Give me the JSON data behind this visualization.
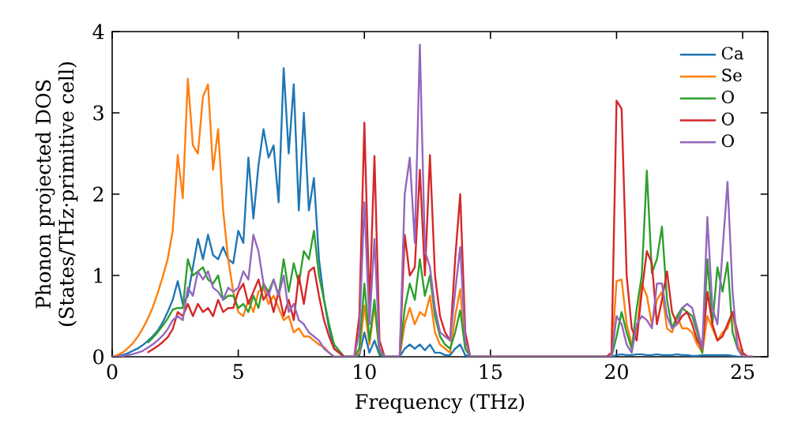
{
  "chart_data": {
    "type": "line",
    "xlabel": "Frequency (THz)",
    "ylabel": "Phonon projected DOS\n(States/THz·primitive cell)",
    "x": [
      0,
      0.2,
      0.4,
      0.6,
      0.8,
      1.0,
      1.2,
      1.4,
      1.6,
      1.8,
      2.0,
      2.2,
      2.4,
      2.6,
      2.8,
      3.0,
      3.2,
      3.4,
      3.6,
      3.8,
      4.0,
      4.2,
      4.4,
      4.6,
      4.8,
      5.0,
      5.2,
      5.4,
      5.6,
      5.8,
      6.0,
      6.2,
      6.4,
      6.6,
      6.8,
      7.0,
      7.2,
      7.4,
      7.6,
      7.8,
      8.0,
      8.2,
      8.4,
      8.6,
      8.8,
      9.2,
      9.6,
      9.8,
      10.0,
      10.2,
      10.4,
      10.6,
      10.8,
      11.4,
      11.6,
      11.8,
      12.0,
      12.2,
      12.4,
      12.6,
      12.8,
      13.0,
      13.2,
      13.4,
      13.6,
      13.8,
      14.0,
      14.2,
      19.6,
      19.8,
      20.0,
      20.2,
      20.4,
      20.6,
      20.8,
      21.0,
      21.2,
      21.4,
      21.6,
      21.8,
      22.0,
      22.2,
      22.4,
      22.6,
      22.8,
      23.0,
      23.2,
      23.4,
      23.6,
      23.8,
      24.0,
      24.2,
      24.4,
      24.6,
      24.8,
      25.0,
      25.2,
      25.4
    ],
    "series": [
      {
        "name": "Ca",
        "color": "#1f77b4",
        "values": [
          0,
          0.01,
          0.02,
          0.04,
          0.07,
          0.1,
          0.14,
          0.19,
          0.25,
          0.32,
          0.42,
          0.55,
          0.7,
          0.93,
          0.65,
          0.75,
          1.1,
          1.45,
          1.2,
          1.5,
          1.25,
          1.2,
          1.35,
          1.2,
          1.15,
          1.55,
          1.4,
          2.45,
          1.7,
          2.35,
          2.8,
          2.45,
          2.6,
          1.9,
          3.55,
          2.5,
          3.35,
          1.8,
          3.0,
          1.8,
          2.2,
          1.2,
          0.7,
          0.35,
          0.1,
          0,
          0,
          0.02,
          0.3,
          0.05,
          0.2,
          0.02,
          0,
          0,
          0.1,
          0.15,
          0.1,
          0.15,
          0.08,
          0.15,
          0.05,
          0.05,
          0.02,
          0.02,
          0.1,
          0.15,
          0.02,
          0,
          0,
          0,
          0.02,
          0.03,
          0.02,
          0.02,
          0.03,
          0.03,
          0.02,
          0.02,
          0.03,
          0.02,
          0.02,
          0.02,
          0.03,
          0.02,
          0.02,
          0.01,
          0.01,
          0.02,
          0.02,
          0.02,
          0.02,
          0.02,
          0.02,
          0.01,
          0,
          0,
          0,
          0
        ]
      },
      {
        "name": "Se",
        "color": "#ff7f0e",
        "values": [
          0,
          0.02,
          0.05,
          0.1,
          0.16,
          0.24,
          0.34,
          0.46,
          0.6,
          0.78,
          0.98,
          1.2,
          1.55,
          2.48,
          1.95,
          3.42,
          2.6,
          2.5,
          3.2,
          3.35,
          2.3,
          2.8,
          1.8,
          1.2,
          0.8,
          0.55,
          0.5,
          0.7,
          0.55,
          0.8,
          0.85,
          0.65,
          0.75,
          0.6,
          0.45,
          0.5,
          0.3,
          0.35,
          0.25,
          0.25,
          0.2,
          0.15,
          0.12,
          0.05,
          0,
          0,
          0,
          0.05,
          0.63,
          0.15,
          0.63,
          0.05,
          0,
          0,
          0.4,
          0.6,
          0.4,
          0.55,
          0.5,
          0.75,
          0.3,
          0.15,
          0.1,
          0.05,
          0.5,
          0.83,
          0.1,
          0,
          0,
          0,
          0.93,
          0.95,
          0.4,
          0.15,
          0.3,
          0.9,
          0.75,
          0.4,
          0.7,
          0.8,
          0.35,
          0.3,
          0.5,
          0.35,
          0.35,
          0.3,
          0.15,
          0.05,
          0.5,
          0.35,
          0.2,
          0.3,
          0.35,
          0.55,
          0.15,
          0,
          0,
          0
        ]
      },
      {
        "name": "O",
        "color": "#2ca02c",
        "values": [
          null,
          null,
          null,
          null,
          null,
          null,
          null,
          0.17,
          0.23,
          0.3,
          0.38,
          0.47,
          0.58,
          0.6,
          0.6,
          1.2,
          1.0,
          1.05,
          1.1,
          0.95,
          0.9,
          1.0,
          0.7,
          0.75,
          0.75,
          0.6,
          0.65,
          0.55,
          0.75,
          0.6,
          0.9,
          0.8,
          0.95,
          0.75,
          1.2,
          0.8,
          1.15,
          0.9,
          1.3,
          1.2,
          1.55,
          1.0,
          0.7,
          0.4,
          0.15,
          0,
          0,
          0.1,
          0.9,
          0.2,
          0.7,
          0.05,
          0,
          0,
          0.6,
          0.9,
          0.7,
          1.2,
          0.75,
          1.0,
          0.5,
          0.25,
          0.15,
          0.1,
          0.3,
          0.57,
          0.1,
          0,
          0,
          0,
          0.25,
          0.55,
          0.3,
          0.1,
          0.6,
          1.0,
          2.29,
          1.03,
          1.2,
          1.6,
          0.7,
          0.35,
          0.5,
          0.6,
          0.55,
          0.5,
          0.3,
          0.05,
          1.2,
          0.4,
          1.1,
          0.8,
          1.16,
          0.3,
          0.1,
          0,
          null,
          null
        ]
      },
      {
        "name": "O",
        "color": "#d62728",
        "values": [
          null,
          null,
          null,
          null,
          null,
          null,
          null,
          0.05,
          0.09,
          0.13,
          0.18,
          0.24,
          0.34,
          0.55,
          0.5,
          0.65,
          0.5,
          0.65,
          0.55,
          0.6,
          0.5,
          0.7,
          0.55,
          0.6,
          0.6,
          0.8,
          0.9,
          0.65,
          0.8,
          0.95,
          0.7,
          0.8,
          0.55,
          0.8,
          0.5,
          0.7,
          0.45,
          1.0,
          0.65,
          1.05,
          1.1,
          0.75,
          0.45,
          0.25,
          0.1,
          0,
          0,
          0.5,
          2.88,
          0.6,
          2.47,
          0.2,
          0,
          0,
          1.5,
          1.0,
          1.1,
          2.3,
          1.0,
          2.48,
          1.0,
          0.5,
          0.3,
          0.2,
          1.2,
          2.0,
          0.3,
          0,
          0,
          0.05,
          3.15,
          3.05,
          1.0,
          0.35,
          0.2,
          0.8,
          1.3,
          1.15,
          0.4,
          0.7,
          1.05,
          0.55,
          0.4,
          0.5,
          0.55,
          0.4,
          0.2,
          0.1,
          0.8,
          0.4,
          0.2,
          0.25,
          0.4,
          0.55,
          0.3,
          0.05,
          0,
          0
        ]
      },
      {
        "name": "O",
        "color": "#9467bd",
        "values": [
          0,
          0,
          0.01,
          0.02,
          0.03,
          0.05,
          0.07,
          0.11,
          0.15,
          0.2,
          0.26,
          0.34,
          0.45,
          0.5,
          0.45,
          0.85,
          0.75,
          1.05,
          0.95,
          1.05,
          0.85,
          0.8,
          0.7,
          0.85,
          0.8,
          0.85,
          1.05,
          0.95,
          1.5,
          1.3,
          0.9,
          0.75,
          0.95,
          0.75,
          1.0,
          0.55,
          0.65,
          0.45,
          0.4,
          0.3,
          0.25,
          0.2,
          0.1,
          0.05,
          0,
          0,
          0,
          0.3,
          1.9,
          0.4,
          1.45,
          0.1,
          0,
          0,
          2.0,
          2.45,
          1.4,
          3.84,
          1.3,
          1.1,
          0.6,
          0.3,
          0.25,
          0.2,
          0.8,
          1.35,
          0.2,
          0,
          0,
          0,
          0.5,
          0.4,
          0.15,
          0.05,
          0.4,
          0.5,
          0.45,
          0.35,
          0.9,
          0.9,
          0.5,
          0.35,
          0.4,
          0.6,
          0.65,
          0.6,
          0.35,
          0.1,
          1.72,
          0.6,
          0.4,
          1.3,
          2.15,
          0.8,
          0.1,
          0,
          0,
          0
        ]
      }
    ],
    "xlim": [
      0,
      26
    ],
    "ylim": [
      0,
      4
    ],
    "xticks": [
      0,
      5,
      10,
      15,
      20,
      25
    ],
    "yticks": [
      0,
      1,
      2,
      3,
      4
    ],
    "legend": "top right",
    "grid": false,
    "marker": "none",
    "line_style": "solid"
  }
}
